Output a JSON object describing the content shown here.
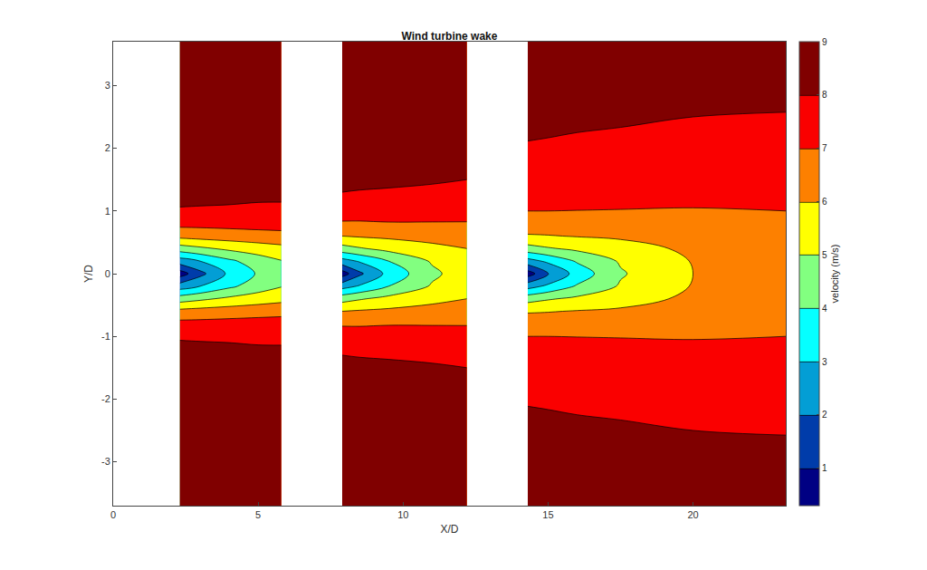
{
  "chart_data": {
    "type": "contour",
    "title": "Wind turbine wake",
    "x_label": "X/D",
    "y_label": "Y/D",
    "xlim": [
      0,
      23.2
    ],
    "xticks": [
      0,
      5,
      10,
      15,
      20
    ],
    "ylim": [
      -3.7,
      3.7
    ],
    "yticks": [
      -3,
      -2,
      -1,
      0,
      1,
      2,
      3
    ],
    "grid": false,
    "levels": [
      1,
      2,
      3,
      4,
      5,
      6,
      7,
      8
    ],
    "y": [
      -3.7,
      -2.5,
      -1.5,
      -1.1,
      -0.8,
      -0.6,
      -0.4,
      -0.2,
      0,
      0.2,
      0.4,
      0.6,
      0.8,
      1.1,
      1.5,
      2.5,
      3.7
    ],
    "wakes": [
      {
        "x": [
          2.3,
          3,
          4,
          5,
          5.8
        ],
        "z": [
          [
            9,
            9,
            9,
            9,
            9
          ],
          [
            8.9,
            8.9,
            8.9,
            8.9,
            8.9
          ],
          [
            8.6,
            8.6,
            8.55,
            8.5,
            8.45
          ],
          [
            8.1,
            8.05,
            8.0,
            7.95,
            7.95
          ],
          [
            7.3,
            7.3,
            7.35,
            7.4,
            7.4
          ],
          [
            6.3,
            6.4,
            6.5,
            6.6,
            6.7
          ],
          [
            4.5,
            4.8,
            5.2,
            5.5,
            5.7
          ],
          [
            2.5,
            3.0,
            3.8,
            4.5,
            4.95
          ],
          [
            0.5,
            1.7,
            3.2,
            4.1,
            4.7
          ],
          [
            2.5,
            3.0,
            3.8,
            4.5,
            4.95
          ],
          [
            4.5,
            4.8,
            5.2,
            5.5,
            5.7
          ],
          [
            6.3,
            6.4,
            6.5,
            6.6,
            6.7
          ],
          [
            7.3,
            7.3,
            7.35,
            7.4,
            7.4
          ],
          [
            8.1,
            8.05,
            8.0,
            7.95,
            7.95
          ],
          [
            8.6,
            8.6,
            8.55,
            8.5,
            8.45
          ],
          [
            8.9,
            8.9,
            8.9,
            8.9,
            8.9
          ],
          [
            9,
            9,
            9,
            9,
            9
          ]
        ]
      },
      {
        "x": [
          7.9,
          8.5,
          9.5,
          11,
          12.2
        ],
        "z": [
          [
            9,
            9,
            9,
            9,
            9
          ],
          [
            8.9,
            8.85,
            8.85,
            8.8,
            8.75
          ],
          [
            8.3,
            8.25,
            8.2,
            8.1,
            8.0
          ],
          [
            7.7,
            7.65,
            7.6,
            7.55,
            7.5
          ],
          [
            6.9,
            6.9,
            6.95,
            6.95,
            6.95
          ],
          [
            6.0,
            6.1,
            6.2,
            6.4,
            6.5
          ],
          [
            4.6,
            4.9,
            5.3,
            5.7,
            6.0
          ],
          [
            2.6,
            3.1,
            4.0,
            5.1,
            5.65
          ],
          [
            0.5,
            1.8,
            3.3,
            4.8,
            5.5
          ],
          [
            2.6,
            3.1,
            4.0,
            5.1,
            5.65
          ],
          [
            4.6,
            4.9,
            5.3,
            5.7,
            6.0
          ],
          [
            6.0,
            6.1,
            6.2,
            6.4,
            6.5
          ],
          [
            6.9,
            6.9,
            6.95,
            6.95,
            6.95
          ],
          [
            7.7,
            7.65,
            7.6,
            7.55,
            7.5
          ],
          [
            8.3,
            8.25,
            8.2,
            8.1,
            8.0
          ],
          [
            8.9,
            8.85,
            8.85,
            8.8,
            8.75
          ],
          [
            9,
            9,
            9,
            9,
            9
          ]
        ]
      },
      {
        "x": [
          14.3,
          15,
          16,
          17.5,
          20,
          23.2
        ],
        "z": [
          [
            8.9,
            8.9,
            8.9,
            8.85,
            8.8,
            8.75
          ],
          [
            8.25,
            8.2,
            8.15,
            8.1,
            8.0,
            7.95
          ],
          [
            7.6,
            7.6,
            7.55,
            7.5,
            7.45,
            7.4
          ],
          [
            7.2,
            7.2,
            7.15,
            7.1,
            7.05,
            7.05
          ],
          [
            6.6,
            6.6,
            6.65,
            6.7,
            6.75,
            6.9
          ],
          [
            5.9,
            5.95,
            6.05,
            6.15,
            6.4,
            6.7
          ],
          [
            4.6,
            4.9,
            5.2,
            5.6,
            6.2,
            6.6
          ],
          [
            2.6,
            3.2,
            4.1,
            5.1,
            6.05,
            6.52
          ],
          [
            0.5,
            1.9,
            3.4,
            4.9,
            6.0,
            6.5
          ],
          [
            2.6,
            3.2,
            4.1,
            5.1,
            6.05,
            6.52
          ],
          [
            4.6,
            4.9,
            5.2,
            5.6,
            6.2,
            6.6
          ],
          [
            5.9,
            5.95,
            6.05,
            6.15,
            6.4,
            6.7
          ],
          [
            6.6,
            6.6,
            6.65,
            6.7,
            6.75,
            6.9
          ],
          [
            7.2,
            7.2,
            7.15,
            7.1,
            7.05,
            7.05
          ],
          [
            7.6,
            7.6,
            7.55,
            7.5,
            7.45,
            7.4
          ],
          [
            8.25,
            8.2,
            8.15,
            8.1,
            8.0,
            7.95
          ],
          [
            8.9,
            8.9,
            8.9,
            8.85,
            8.8,
            8.75
          ]
        ]
      }
    ],
    "colorbar": {
      "title": "velocity (m/s)",
      "range": [
        0.3,
        9
      ],
      "ticks": [
        1,
        2,
        3,
        4,
        5,
        6,
        7,
        8,
        9
      ]
    }
  }
}
